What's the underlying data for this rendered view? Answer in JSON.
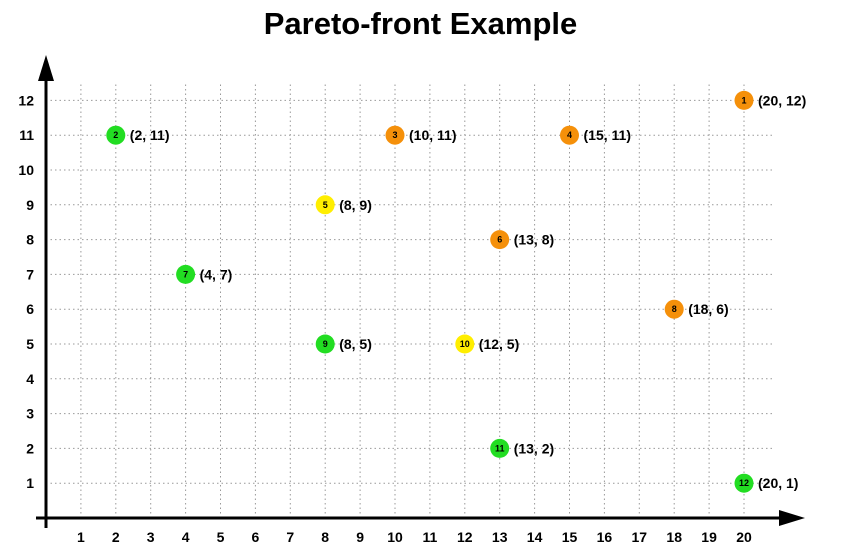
{
  "chart_data": {
    "type": "scatter",
    "title": "Pareto-front Example",
    "xlabel": "",
    "ylabel": "",
    "xlim": [
      0,
      21
    ],
    "ylim": [
      0,
      12.5
    ],
    "x_ticks": [
      "1",
      "2",
      "3",
      "4",
      "5",
      "6",
      "7",
      "8",
      "9",
      "10",
      "11",
      "12",
      "13",
      "14",
      "15",
      "16",
      "17",
      "18",
      "19",
      "20"
    ],
    "y_ticks": [
      "1",
      "2",
      "3",
      "4",
      "5",
      "6",
      "7",
      "8",
      "9",
      "10",
      "11",
      "12"
    ],
    "grid": true,
    "colors": {
      "green": "#22dd22",
      "yellow": "#ffee00",
      "orange": "#f5900a",
      "axis": "#000000",
      "grid": "#999999"
    },
    "points": [
      {
        "id": "1",
        "x": 20,
        "y": 12,
        "label": "(20, 12)",
        "color": "orange"
      },
      {
        "id": "2",
        "x": 2,
        "y": 11,
        "label": "(2, 11)",
        "color": "green"
      },
      {
        "id": "3",
        "x": 10,
        "y": 11,
        "label": "(10, 11)",
        "color": "orange"
      },
      {
        "id": "4",
        "x": 15,
        "y": 11,
        "label": "(15, 11)",
        "color": "orange"
      },
      {
        "id": "5",
        "x": 8,
        "y": 9,
        "label": "(8, 9)",
        "color": "yellow"
      },
      {
        "id": "6",
        "x": 13,
        "y": 8,
        "label": "(13, 8)",
        "color": "orange"
      },
      {
        "id": "7",
        "x": 4,
        "y": 7,
        "label": "(4, 7)",
        "color": "green"
      },
      {
        "id": "8",
        "x": 18,
        "y": 6,
        "label": "(18, 6)",
        "color": "orange"
      },
      {
        "id": "9",
        "x": 8,
        "y": 5,
        "label": "(8, 5)",
        "color": "green"
      },
      {
        "id": "10",
        "x": 12,
        "y": 5,
        "label": "(12, 5)",
        "color": "yellow"
      },
      {
        "id": "11",
        "x": 13,
        "y": 2,
        "label": "(13, 2)",
        "color": "green"
      },
      {
        "id": "12",
        "x": 20,
        "y": 1,
        "label": "(20, 1)",
        "color": "green"
      }
    ]
  }
}
